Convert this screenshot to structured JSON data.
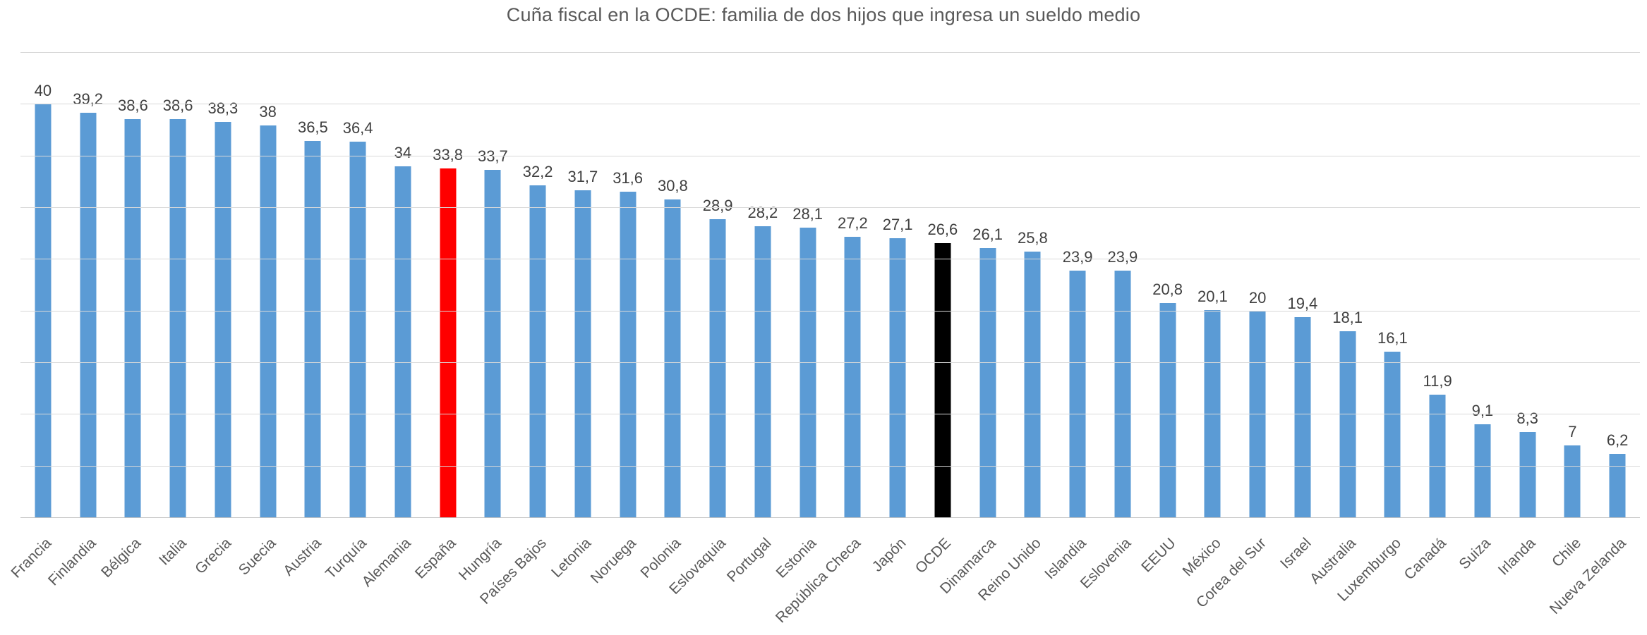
{
  "page": {
    "background": "#ffffff"
  },
  "chart_data": {
    "type": "bar",
    "title": "Cuña fiscal en la OCDE: familia de dos hijos que ingresa un sueldo medio",
    "xlabel": "",
    "ylabel": "",
    "ylim": [
      0,
      45
    ],
    "gridline_step": 5,
    "grid": true,
    "legend": false,
    "y_axis_tick_labels_visible": false,
    "decimal_separator": ",",
    "categories": [
      "Francia",
      "Finlandia",
      "Bélgica",
      "Italia",
      "Grecia",
      "Suecia",
      "Austria",
      "Turquía",
      "Alemania",
      "España",
      "Hungría",
      "Países Bajos",
      "Letonia",
      "Noruega",
      "Polonia",
      "Eslovaquia",
      "Portugal",
      "Estonia",
      "República Checa",
      "Japón",
      "OCDE",
      "Dinamarca",
      "Reino Unido",
      "Islandia",
      "Eslovenia",
      "EEUU",
      "México",
      "Corea del Sur",
      "Israel",
      "Australia",
      "Luxemburgo",
      "Canadá",
      "Suiza",
      "Irlanda",
      "Chile",
      "Nueva Zelanda"
    ],
    "values": [
      40,
      39.2,
      38.6,
      38.6,
      38.3,
      38,
      36.5,
      36.4,
      34,
      33.8,
      33.7,
      32.2,
      31.7,
      31.6,
      30.8,
      28.9,
      28.2,
      28.1,
      27.2,
      27.1,
      26.6,
      26.1,
      25.8,
      23.9,
      23.9,
      20.8,
      20.1,
      20,
      19.4,
      18.1,
      16.1,
      11.9,
      9.1,
      8.3,
      7,
      6.2
    ],
    "display_values": [
      "40",
      "39,2",
      "38,6",
      "38,6",
      "38,3",
      "38",
      "36,5",
      "36,4",
      "34",
      "33,8",
      "33,7",
      "32,2",
      "31,7",
      "31,6",
      "30,8",
      "28,9",
      "28,2",
      "28,1",
      "27,2",
      "27,1",
      "26,6",
      "26,1",
      "25,8",
      "23,9",
      "23,9",
      "20,8",
      "20,1",
      "20",
      "19,4",
      "18,1",
      "16,1",
      "11,9",
      "9,1",
      "8,3",
      "7",
      "6,2"
    ],
    "bar_color_default": "#5b9bd5",
    "special_bars": {
      "9": "#ff0000",
      "20": "#000000"
    },
    "highlighted_categories": {
      "España": "#ff0000",
      "OCDE": "#000000"
    },
    "gridline_color": "#d9d9d9",
    "value_label_color": "#3f3f3f",
    "axis_label_color": "#595959",
    "title_color": "#595959"
  }
}
